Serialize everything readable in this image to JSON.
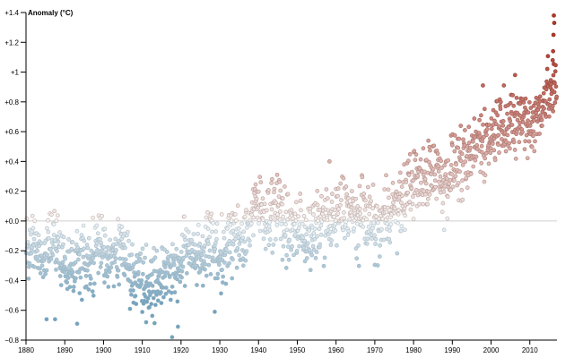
{
  "chart_data": {
    "type": "scatter",
    "title": "",
    "ylabel": "Anomaly (°C)",
    "xlabel": "",
    "xlim": [
      1880,
      2017
    ],
    "ylim": [
      -0.8,
      1.4
    ],
    "x_ticks": [
      1880,
      1890,
      1900,
      1910,
      1920,
      1930,
      1940,
      1950,
      1960,
      1970,
      1980,
      1990,
      2000,
      2010
    ],
    "x_tick_labels": [
      "1880",
      "1890",
      "1900",
      "1910",
      "1920",
      "1930",
      "1940",
      "1950",
      "1960",
      "1970",
      "1980",
      "1990",
      "2000",
      "2010"
    ],
    "y_ticks": [
      -0.8,
      -0.6,
      -0.4,
      -0.2,
      0,
      0.2,
      0.4,
      0.6,
      0.8,
      1,
      1.2,
      1.4
    ],
    "y_tick_labels": [
      "−0.8",
      "−0.6",
      "−0.4",
      "−0.2",
      "+0.0",
      "+0.2",
      "+0.4",
      "+0.6",
      "+0.8",
      "+1",
      "+1.2",
      "+1.4"
    ],
    "reference_line": 0,
    "grid": false,
    "color_scale": {
      "cold": "#6fa3c2",
      "neutral": "#f4f4f4",
      "warm": "#b2382a",
      "stroke_low": "#8aa9b8",
      "stroke_high": "#8a2a20"
    },
    "decade_means": [
      [
        1880,
        -0.2
      ],
      [
        1890,
        -0.25
      ],
      [
        1900,
        -0.2
      ],
      [
        1910,
        -0.38
      ],
      [
        1920,
        -0.28
      ],
      [
        1930,
        -0.18
      ],
      [
        1940,
        0.05
      ],
      [
        1950,
        -0.05
      ],
      [
        1960,
        0.0
      ],
      [
        1970,
        0.02
      ],
      [
        1980,
        0.2
      ],
      [
        1990,
        0.38
      ],
      [
        2000,
        0.55
      ],
      [
        2010,
        0.72
      ],
      [
        2017,
        0.9
      ]
    ],
    "spread": 0.11,
    "highlights": [
      [
        1885.3,
        -0.66
      ],
      [
        1887.5,
        -0.66
      ],
      [
        1893.2,
        -0.69
      ],
      [
        1917.7,
        -0.78
      ],
      [
        1919.2,
        -0.71
      ],
      [
        1911.0,
        -0.68
      ],
      [
        1928.7,
        -0.61
      ],
      [
        1944.8,
        0.31
      ],
      [
        1958.3,
        0.4
      ],
      [
        1987.9,
        -0.06
      ],
      [
        1997.9,
        0.91
      ],
      [
        2003.3,
        0.91
      ],
      [
        2006.2,
        0.98
      ],
      [
        2015.9,
        1.08
      ],
      [
        2016.0,
        1.14
      ],
      [
        2016.1,
        1.25
      ],
      [
        2016.2,
        1.38
      ],
      [
        2016.3,
        1.33
      ]
    ]
  }
}
